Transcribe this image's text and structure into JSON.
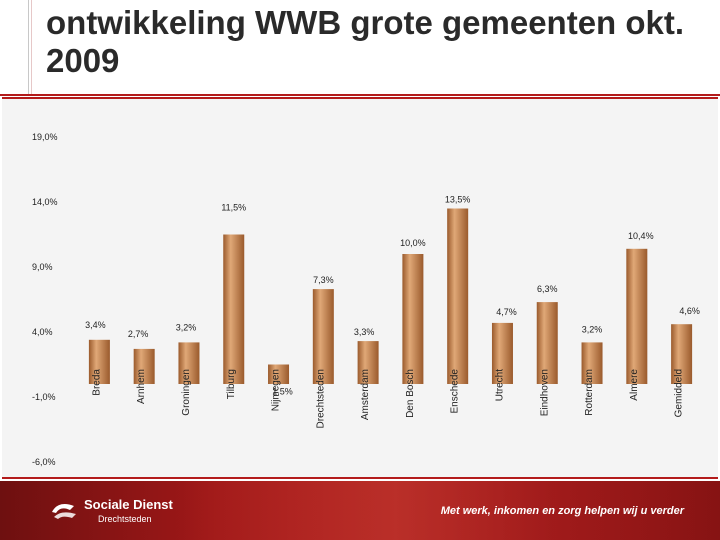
{
  "title": "ontwikkeling WWB grote gemeenten okt. 2009",
  "footer": {
    "brand_name": "Sociale Dienst",
    "brand_sub": "Drechtsteden",
    "tagline": "Met werk, inkomen en zorg helpen wij u verder"
  },
  "colors": {
    "accent": "#b31b1b",
    "bar_fill": "#c8874f",
    "bar_light": "#e0a877",
    "bar_dark": "#9a5a2c",
    "plot_background": "#f4f4f4"
  },
  "chart_data": {
    "type": "bar",
    "title": "",
    "xlabel": "",
    "ylabel": "",
    "ylim": [
      -6,
      19
    ],
    "yticks": [
      "19,0%",
      "14,0%",
      "9,0%",
      "4,0%",
      "-1,0%",
      "-6,0%"
    ],
    "ytick_values": [
      19,
      14,
      9,
      4,
      -1,
      -6
    ],
    "grid": false,
    "legend": "none",
    "categories": [
      "Breda",
      "Arnhem",
      "Groningen",
      "Tilburg",
      "Nijmegen",
      "Drechtsteden",
      "Amsterdam",
      "Den Bosch",
      "Enschede",
      "Utrecht",
      "Eindhoven",
      "Rotterdam",
      "Almere",
      "Gemiddeld"
    ],
    "values": [
      3.4,
      2.7,
      3.2,
      11.5,
      1.5,
      7.3,
      3.3,
      10.0,
      13.5,
      4.7,
      6.3,
      3.2,
      10.4,
      4.6
    ],
    "data_labels": [
      "3,4%",
      "2,7%",
      "3,2%",
      "11,5%",
      "1,5%",
      "7,3%",
      "3,3%",
      "10,0%",
      "13,5%",
      "4,7%",
      "6,3%",
      "3,2%",
      "10,4%",
      "4,6%"
    ]
  }
}
